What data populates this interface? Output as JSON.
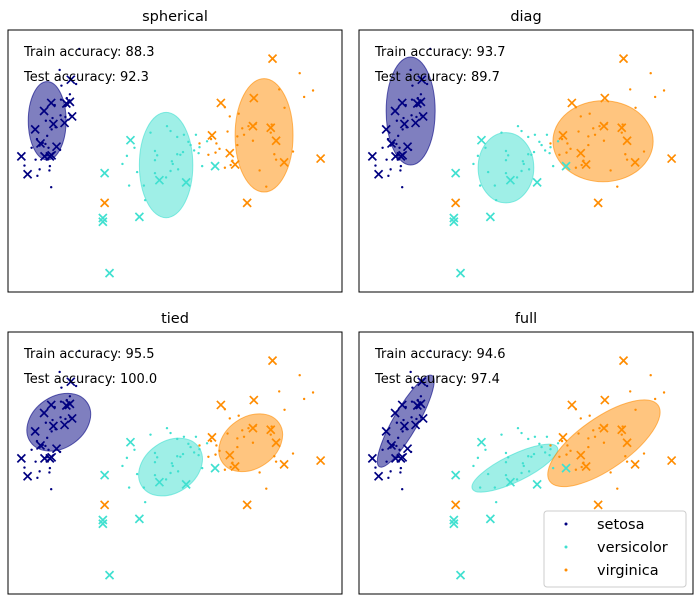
{
  "chart_data": {
    "type": "scatter",
    "colors": {
      "setosa": "#000080",
      "versicolor": "#40e0d0",
      "virginica": "#ff8c00"
    },
    "axes": {
      "xticks": "none",
      "yticks": "none",
      "grid": false
    },
    "legend": {
      "placement": "bottom-right",
      "panel": "full",
      "entries": [
        {
          "label": "setosa",
          "color": "#000080"
        },
        {
          "label": "versicolor",
          "color": "#40e0d0"
        },
        {
          "label": "virginica",
          "color": "#ff8c00"
        }
      ]
    },
    "shared_points": {
      "train": {
        "setosa": [
          [
            -2.75,
            0.32
          ],
          [
            -2.69,
            -0.18
          ],
          [
            -2.89,
            -0.14
          ],
          [
            -2.73,
            -0.32
          ],
          [
            -2.28,
            0.74
          ],
          [
            -2.82,
            -0.09
          ],
          [
            -2.62,
            0.16
          ],
          [
            -2.89,
            -0.58
          ],
          [
            -2.31,
            0.39
          ],
          [
            -2.41,
            0.71
          ],
          [
            -2.55,
            0.61
          ],
          [
            -2.72,
            0.04
          ],
          [
            -2.53,
            0.2
          ],
          [
            -2.31,
            0.59
          ],
          [
            -2.4,
            0.97
          ],
          [
            -2.66,
            -0.52
          ],
          [
            -2.95,
            -0.02
          ],
          [
            -2.07,
            1.0
          ],
          [
            -2.2,
            0.42
          ],
          [
            -2.98,
            -0.4
          ],
          [
            -2.76,
            -0.11
          ],
          [
            -2.6,
            0.37
          ],
          [
            -2.43,
            -0.22
          ],
          [
            -3.23,
            -0.51
          ],
          [
            -2.21,
            0.81
          ],
          [
            -2.44,
            1.26
          ],
          [
            -2.0,
            1.65
          ],
          [
            -2.67,
            -0.6
          ],
          [
            -2.42,
            0.42
          ],
          [
            -2.94,
            -0.7
          ],
          [
            -3.07,
            -0.18
          ],
          [
            -2.63,
            -0.91
          ]
        ],
        "versicolor": [
          [
            -0.3,
            -0.65
          ],
          [
            0.2,
            -0.3
          ],
          [
            -0.7,
            -0.63
          ],
          [
            0.1,
            -0.48
          ],
          [
            0.68,
            -0.28
          ],
          [
            -0.93,
            -0.33
          ],
          [
            0.33,
            -0.26
          ],
          [
            -0.52,
            -1.15
          ],
          [
            -0.76,
            -0.18
          ],
          [
            0.45,
            -0.07
          ],
          [
            0.08,
            -0.43
          ],
          [
            -0.25,
            -0.32
          ],
          [
            0.76,
            -0.52
          ],
          [
            0.22,
            -0.58
          ],
          [
            -0.4,
            0.1
          ],
          [
            0.05,
            0.13
          ],
          [
            0.87,
            -0.06
          ],
          [
            -1.03,
            -0.48
          ],
          [
            0.35,
            0.06
          ],
          [
            -0.3,
            -0.41
          ],
          [
            0.27,
            -0.31
          ],
          [
            0.5,
            -0.13
          ],
          [
            0.7,
            -0.17
          ],
          [
            -0.3,
            -0.24
          ],
          [
            0.05,
            -0.61
          ],
          [
            -0.55,
            -0.88
          ],
          [
            0.2,
            0.02
          ],
          [
            -0.03,
            0.22
          ],
          [
            0.62,
            0.06
          ],
          [
            0.58,
            -0.23
          ],
          [
            -0.05,
            -0.73
          ],
          [
            -0.88,
            -0.88
          ]
        ],
        "virginica": [
          [
            1.4,
            -0.5
          ],
          [
            1.06,
            -0.27
          ],
          [
            2.49,
            0.9
          ],
          [
            1.27,
            0.57
          ],
          [
            1.96,
            0.26
          ],
          [
            2.38,
            -0.3
          ],
          [
            1.27,
            -0.55
          ],
          [
            2.3,
            0.1
          ],
          [
            1.58,
            0.45
          ],
          [
            3.05,
            0.76
          ],
          [
            2.95,
            1.2
          ],
          [
            1.44,
            -0.42
          ],
          [
            1.55,
            0.03
          ],
          [
            2.32,
            0.25
          ],
          [
            1.66,
            0.18
          ],
          [
            0.9,
            -0.31
          ],
          [
            1.38,
            0.4
          ],
          [
            2.61,
            0.56
          ],
          [
            1.8,
            0.22
          ],
          [
            2.42,
            -0.4
          ],
          [
            1.7,
            0.06
          ],
          [
            1.08,
            -0.1
          ],
          [
            3.25,
            0.88
          ],
          [
            2.05,
            -0.6
          ],
          [
            1.33,
            0.12
          ],
          [
            0.96,
            -0.02
          ],
          [
            2.2,
            -0.9
          ],
          [
            1.55,
            -0.13
          ],
          [
            1.9,
            -0.05
          ],
          [
            2.8,
            -0.25
          ],
          [
            0.7,
            -0.1
          ],
          [
            1.15,
            -0.2
          ]
        ]
      },
      "test": {
        "setosa": [
          [
            -2.63,
            0.65
          ],
          [
            -2.29,
            0.64
          ],
          [
            -2.79,
            0.5
          ],
          [
            -2.58,
            0.26
          ],
          [
            -2.99,
            0.16
          ],
          [
            -2.87,
            -0.1
          ],
          [
            -2.62,
            -0.32
          ],
          [
            -2.78,
            -0.34
          ],
          [
            -2.51,
            -0.16
          ],
          [
            -2.33,
            0.28
          ],
          [
            -2.16,
            0.4
          ],
          [
            -2.21,
            0.67
          ],
          [
            -2.19,
            1.08
          ],
          [
            -2.66,
            -0.34
          ],
          [
            -3.3,
            -0.34
          ],
          [
            -3.16,
            -0.67
          ]
        ],
        "versicolor": [
          [
            -1.43,
            -0.65
          ],
          [
            -1.47,
            -1.55
          ],
          [
            -0.65,
            -1.46
          ],
          [
            -1.32,
            -2.5
          ],
          [
            -1.47,
            -1.48
          ],
          [
            0.4,
            -0.82
          ],
          [
            1.05,
            -0.52
          ],
          [
            -0.85,
            -0.04
          ],
          [
            -0.2,
            -0.78
          ]
        ],
        "virginica": [
          [
            0.98,
            0.05
          ],
          [
            1.38,
            -0.28
          ],
          [
            1.9,
            0.22
          ],
          [
            2.42,
            -0.05
          ],
          [
            2.6,
            -0.45
          ],
          [
            2.3,
            0.19
          ],
          [
            1.92,
            0.74
          ],
          [
            1.5,
            -0.49
          ],
          [
            3.42,
            -0.38
          ],
          [
            2.34,
            1.47
          ],
          [
            1.77,
            -1.2
          ],
          [
            1.18,
            0.65
          ],
          [
            -1.43,
            -1.2
          ]
        ]
      }
    },
    "panels": [
      {
        "title": "spherical",
        "train_accuracy_text": "Train accuracy: 88.3",
        "test_accuracy_text": "Test accuracy: 92.3",
        "ellipses": [
          {
            "class": "setosa",
            "center": [
              -2.72,
              0.32
            ],
            "width": 0.85,
            "height": 1.45,
            "angle": 0
          },
          {
            "class": "versicolor",
            "center": [
              -0.05,
              -0.5
            ],
            "width": 1.2,
            "height": 1.95,
            "angle": 0
          },
          {
            "class": "virginica",
            "center": [
              2.15,
              0.05
            ],
            "width": 1.3,
            "height": 2.1,
            "angle": 0
          }
        ]
      },
      {
        "title": "diag",
        "train_accuracy_text": "Train accuracy: 93.7",
        "test_accuracy_text": "Test accuracy: 89.7",
        "ellipses": [
          {
            "class": "setosa",
            "center": [
              -2.44,
              0.5
            ],
            "width": 1.1,
            "height": 2.0,
            "angle": 0
          },
          {
            "class": "versicolor",
            "center": [
              -0.3,
              -0.55
            ],
            "width": 1.25,
            "height": 1.3,
            "angle": 0
          },
          {
            "class": "virginica",
            "center": [
              1.88,
              -0.06
            ],
            "width": 2.25,
            "height": 1.5,
            "angle": 0
          }
        ]
      },
      {
        "title": "tied",
        "train_accuracy_text": "Train accuracy: 95.5",
        "test_accuracy_text": "Test accuracy: 100.0",
        "ellipses": [
          {
            "class": "setosa",
            "center": [
              -2.46,
              0.33
            ],
            "width": 1.55,
            "height": 0.95,
            "angle": -35
          },
          {
            "class": "versicolor",
            "center": [
              0.05,
              -0.5
            ],
            "width": 1.55,
            "height": 0.95,
            "angle": -35
          },
          {
            "class": "virginica",
            "center": [
              1.85,
              -0.05
            ],
            "width": 1.55,
            "height": 0.95,
            "angle": -35
          }
        ]
      },
      {
        "title": "full",
        "train_accuracy_text": "Train accuracy: 94.6",
        "test_accuracy_text": "Test accuracy: 97.4",
        "ellipses": [
          {
            "class": "setosa",
            "center": [
              -2.55,
              0.35
            ],
            "width": 0.55,
            "height": 1.95,
            "angle": 30
          },
          {
            "class": "versicolor",
            "center": [
              -0.1,
              -0.52
            ],
            "width": 0.6,
            "height": 1.75,
            "angle": 64
          },
          {
            "class": "virginica",
            "center": [
              1.9,
              -0.06
            ],
            "width": 1.15,
            "height": 2.45,
            "angle": 55
          }
        ]
      }
    ]
  }
}
